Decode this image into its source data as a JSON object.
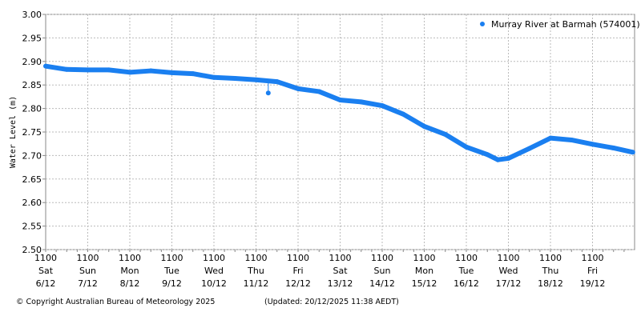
{
  "chart_data": {
    "type": "scatter",
    "ylabel": "Water Level (m)",
    "ylim": [
      2.5,
      3.0
    ],
    "yticks": [
      "2.50",
      "2.55",
      "2.60",
      "2.65",
      "2.70",
      "2.75",
      "2.80",
      "2.85",
      "2.90",
      "2.95",
      "3.00"
    ],
    "xlim": [
      "2025-12-06 11:00",
      "2025-12-20 11:00"
    ],
    "xticks": [
      {
        "time": "1100",
        "day": "Sat",
        "date": "6/12"
      },
      {
        "time": "1100",
        "day": "Sun",
        "date": "7/12"
      },
      {
        "time": "1100",
        "day": "Mon",
        "date": "8/12"
      },
      {
        "time": "1100",
        "day": "Tue",
        "date": "9/12"
      },
      {
        "time": "1100",
        "day": "Wed",
        "date": "10/12"
      },
      {
        "time": "1100",
        "day": "Thu",
        "date": "11/12"
      },
      {
        "time": "1100",
        "day": "Fri",
        "date": "12/12"
      },
      {
        "time": "1100",
        "day": "Sat",
        "date": "13/12"
      },
      {
        "time": "1100",
        "day": "Sun",
        "date": "14/12"
      },
      {
        "time": "1100",
        "day": "Mon",
        "date": "15/12"
      },
      {
        "time": "1100",
        "day": "Tue",
        "date": "16/12"
      },
      {
        "time": "1100",
        "day": "Wed",
        "date": "17/12"
      },
      {
        "time": "1100",
        "day": "Thu",
        "date": "18/12"
      },
      {
        "time": "1100",
        "day": "Fri",
        "date": "19/12"
      }
    ],
    "grid": true,
    "legend_position": "top-right",
    "series": [
      {
        "name": "Murray River at Barmah (574001)",
        "color": "#1a7ff0",
        "points": [
          [
            "2025-12-06 11:00",
            2.89
          ],
          [
            "2025-12-06 23:00",
            2.883
          ],
          [
            "2025-12-07 11:00",
            2.882
          ],
          [
            "2025-12-07 23:00",
            2.882
          ],
          [
            "2025-12-08 11:00",
            2.877
          ],
          [
            "2025-12-08 23:00",
            2.88
          ],
          [
            "2025-12-09 11:00",
            2.876
          ],
          [
            "2025-12-09 23:00",
            2.874
          ],
          [
            "2025-12-10 11:00",
            2.866
          ],
          [
            "2025-12-10 23:00",
            2.864
          ],
          [
            "2025-12-11 11:00",
            2.861
          ],
          [
            "2025-12-11 18:00",
            2.833
          ],
          [
            "2025-12-11 23:00",
            2.857
          ],
          [
            "2025-12-12 11:00",
            2.842
          ],
          [
            "2025-12-12 23:00",
            2.836
          ],
          [
            "2025-12-13 11:00",
            2.818
          ],
          [
            "2025-12-13 23:00",
            2.814
          ],
          [
            "2025-12-14 11:00",
            2.806
          ],
          [
            "2025-12-14 23:00",
            2.788
          ],
          [
            "2025-12-15 11:00",
            2.762
          ],
          [
            "2025-12-15 23:00",
            2.745
          ],
          [
            "2025-12-16 11:00",
            2.718
          ],
          [
            "2025-12-16 23:00",
            2.702
          ],
          [
            "2025-12-17 05:00",
            2.691
          ],
          [
            "2025-12-17 11:00",
            2.694
          ],
          [
            "2025-12-17 23:00",
            2.715
          ],
          [
            "2025-12-18 11:00",
            2.737
          ],
          [
            "2025-12-18 23:00",
            2.733
          ],
          [
            "2025-12-19 11:00",
            2.724
          ],
          [
            "2025-12-19 23:00",
            2.716
          ],
          [
            "2025-12-20 10:00",
            2.707
          ]
        ]
      }
    ]
  },
  "footer": {
    "copyright": "© Copyright Australian Bureau of Meteorology 2025",
    "updated": "(Updated: 20/12/2025 11:38 AEDT)"
  }
}
